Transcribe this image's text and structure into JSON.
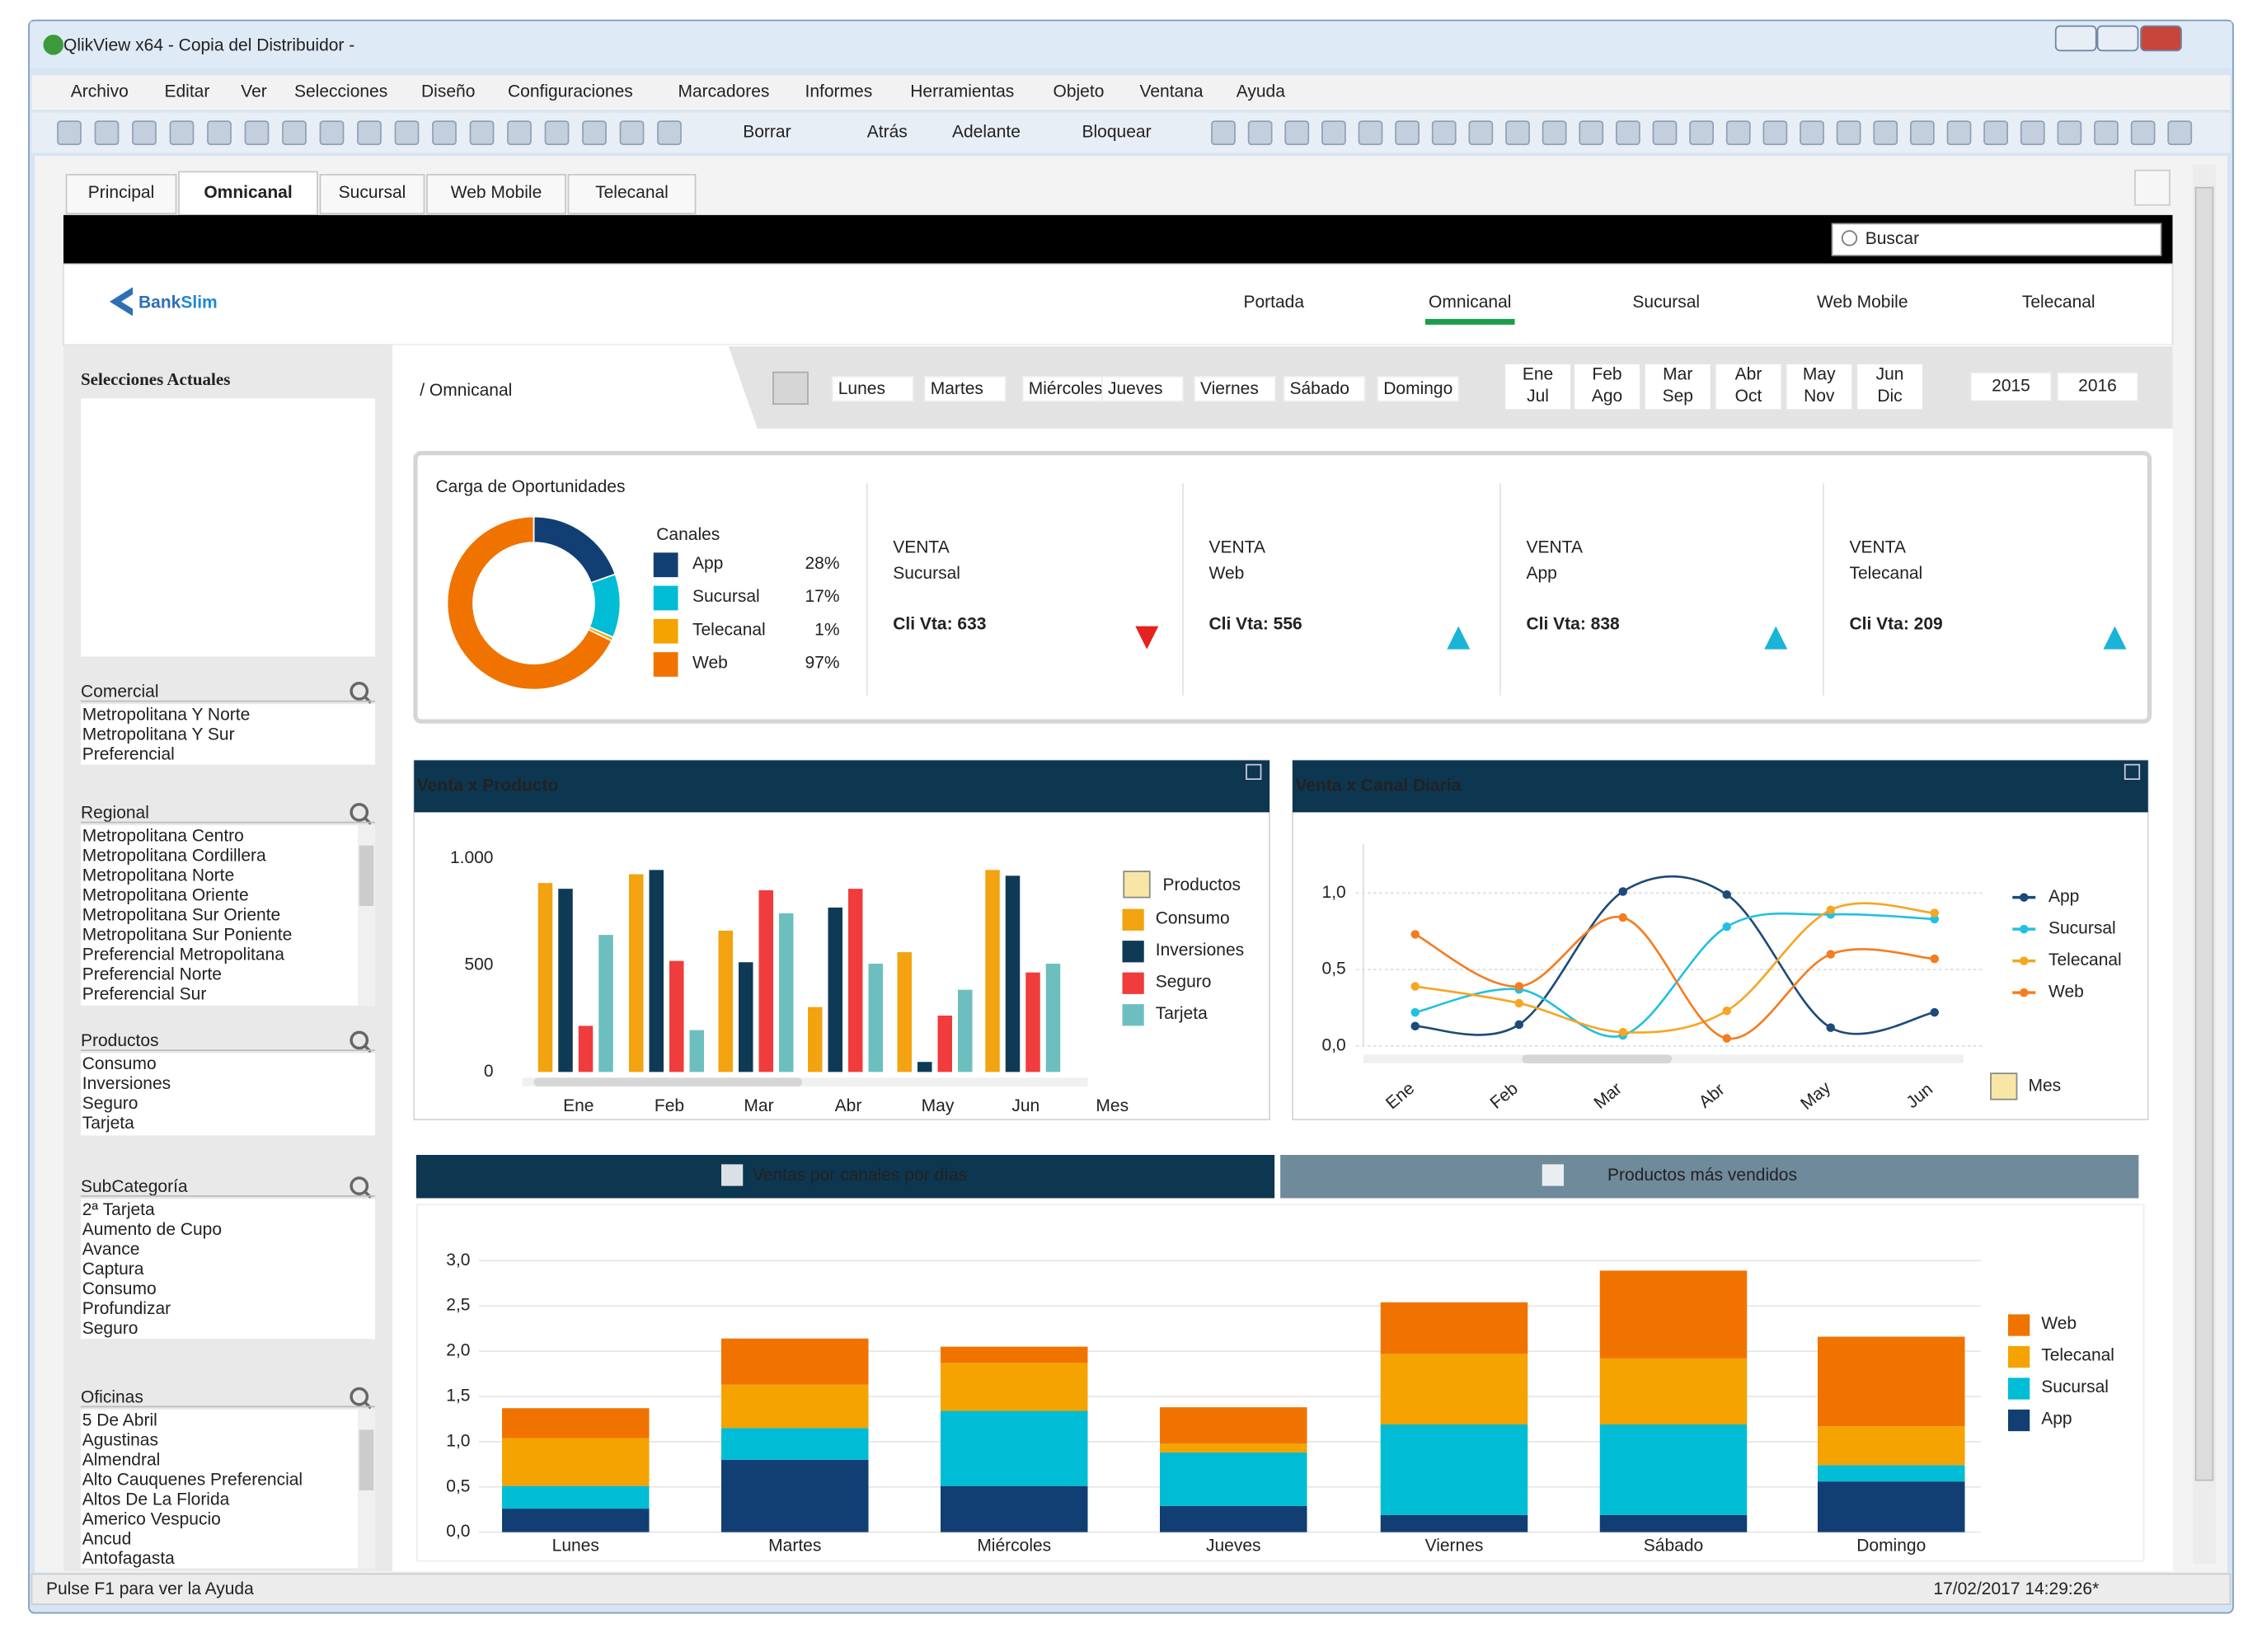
{
  "window": {
    "title": "QlikView x64 - Copia del Distribuidor -"
  },
  "menu": [
    "Archivo",
    "Editar",
    "Ver",
    "Selecciones",
    "Diseño",
    "Configuraciones",
    "Marcadores",
    "Informes",
    "Herramientas",
    "Objeto",
    "Ventana",
    "Ayuda"
  ],
  "toolbar": {
    "clear": "Borrar",
    "back": "Atrás",
    "forward": "Adelante",
    "lock": "Bloquear"
  },
  "tabs": {
    "items": [
      "Principal",
      "Omnicanal",
      "Sucursal",
      "Web Mobile",
      "Telecanal"
    ],
    "active": 1
  },
  "search": "Buscar",
  "brand": {
    "part1": "Bank",
    "part2": "Slim"
  },
  "nav": {
    "items": [
      "Portada",
      "Omnicanal",
      "Sucursal",
      "Web Mobile",
      "Telecanal"
    ],
    "active": 1
  },
  "breadcrumb": "/ Omnicanal",
  "filters": {
    "days": [
      "Lunes",
      "Martes",
      "Miércoles",
      "Jueves",
      "Viernes",
      "Sábado",
      "Domingo"
    ],
    "months": [
      [
        "Ene",
        "Jul"
      ],
      [
        "Feb",
        "Ago"
      ],
      [
        "Mar",
        "Sep"
      ],
      [
        "Abr",
        "Oct"
      ],
      [
        "May",
        "Nov"
      ],
      [
        "Jun",
        "Dic"
      ]
    ],
    "years": [
      "2015",
      "2016"
    ]
  },
  "sidebar": {
    "current_title": "Selecciones Actuales",
    "lists": [
      {
        "title": "Comercial",
        "items": [
          "Metropolitana Y Norte",
          "Metropolitana Y Sur",
          "Preferencial"
        ]
      },
      {
        "title": "Regional",
        "items": [
          "Metropolitana Centro",
          "Metropolitana Cordillera",
          "Metropolitana Norte",
          "Metropolitana Oriente",
          "Metropolitana Sur Oriente",
          "Metropolitana Sur Poniente",
          "Preferencial Metropolitana",
          "Preferencial Norte",
          "Preferencial Sur"
        ]
      },
      {
        "title": "Productos",
        "items": [
          "Consumo",
          "Inversiones",
          "Seguro",
          "Tarjeta"
        ]
      },
      {
        "title": "SubCategoría",
        "items": [
          "2ª Tarjeta",
          "Aumento de Cupo",
          "Avance",
          "Captura",
          "Consumo",
          "Profundizar",
          "Seguro"
        ]
      },
      {
        "title": "Oficinas",
        "items": [
          "5 De Abril",
          "Agustinas",
          "Almendral",
          "Alto Cauquenes Preferencial",
          "Altos De La Florida",
          "Americo Vespucio",
          "Ancud",
          "Antofagasta"
        ]
      }
    ]
  },
  "kpi_panel": {
    "title": "Carga de Oportunidades",
    "trend_colors": {
      "up": "#19b4d8",
      "down": "#e3231f"
    },
    "kpis": [
      {
        "caption": "VENTA",
        "name": "Sucursal",
        "label": "Cli Vta: 633",
        "trend": "down"
      },
      {
        "caption": "VENTA",
        "name": "Web",
        "label": "Cli Vta: 556",
        "trend": "up"
      },
      {
        "caption": "VENTA",
        "name": "App",
        "label": "Cli Vta: 838",
        "trend": "up"
      },
      {
        "caption": "VENTA",
        "name": "Telecanal",
        "label": "Cli Vta: 209",
        "trend": "up"
      }
    ]
  },
  "chart_data": [
    {
      "type": "pie",
      "donut": true,
      "legend_title": "Canales",
      "categories": [
        "App",
        "Sucursal",
        "Telecanal",
        "Web"
      ],
      "values": [
        28,
        17,
        1,
        97
      ],
      "value_labels": [
        "28%",
        "17%",
        "1%",
        "97%"
      ],
      "colors": [
        "#123f73",
        "#00bcd4",
        "#f4a300",
        "#f07300"
      ]
    },
    {
      "type": "bar",
      "title": "Venta x Producto",
      "legend_title": "Productos",
      "x_label": "Mes",
      "categories": [
        "Ene",
        "Feb",
        "Mar",
        "Abr",
        "May",
        "Jun"
      ],
      "series": [
        {
          "name": "Consumo",
          "color": "#f2a30f",
          "values": [
            885,
            926,
            662,
            304,
            561,
            946
          ]
        },
        {
          "name": "Inversiones",
          "color": "#0f3a56",
          "values": [
            858,
            946,
            514,
            770,
            47,
            919
          ]
        },
        {
          "name": "Seguro",
          "color": "#f03c3c",
          "values": [
            216,
            520,
            851,
            858,
            264,
            466
          ]
        },
        {
          "name": "Tarjeta",
          "color": "#6dbfbf",
          "values": [
            642,
            196,
            743,
            507,
            385,
            507
          ]
        }
      ],
      "ylim": [
        0,
        1030
      ],
      "yticks": [
        0,
        500,
        {
          "value": 1000,
          "label": "1.000"
        }
      ],
      "grid": false
    },
    {
      "type": "line",
      "title": "Venta x Canal Diaria",
      "x_label": "Mes",
      "categories": [
        "Ene",
        "Feb",
        "Mar",
        "Abr",
        "May",
        "Jun"
      ],
      "series": [
        {
          "name": "App",
          "color": "#1d4a7a",
          "values": [
            0.13,
            0.14,
            1.01,
            0.99,
            0.12,
            0.22
          ]
        },
        {
          "name": "Sucursal",
          "color": "#22c0e0",
          "values": [
            0.22,
            0.37,
            0.07,
            0.78,
            0.86,
            0.83
          ]
        },
        {
          "name": "Telecanal",
          "color": "#f5a623",
          "values": [
            0.39,
            0.28,
            0.09,
            0.23,
            0.89,
            0.87
          ]
        },
        {
          "name": "Web",
          "color": "#f57c1f",
          "values": [
            0.73,
            0.39,
            0.84,
            0.05,
            0.6,
            0.57
          ]
        }
      ],
      "ylim": [
        0,
        1.25
      ],
      "yticks": [
        {
          "value": 0,
          "label": "0,0"
        },
        {
          "value": 0.5,
          "label": "0,5"
        },
        {
          "value": 1,
          "label": "1,0"
        }
      ],
      "grid": true
    },
    {
      "type": "bar",
      "stacked": true,
      "categories": [
        "Lunes",
        "Martes",
        "Miércoles",
        "Jueves",
        "Viernes",
        "Sábado",
        "Domingo"
      ],
      "series": [
        {
          "name": "App",
          "color": "#123f73",
          "values": [
            0.26,
            0.8,
            0.51,
            0.29,
            0.19,
            0.19,
            0.56
          ]
        },
        {
          "name": "Sucursal",
          "color": "#00bcd4",
          "values": [
            0.25,
            0.35,
            0.83,
            0.59,
            1.0,
            1.0,
            0.18
          ]
        },
        {
          "name": "Telecanal",
          "color": "#f4a300",
          "values": [
            0.53,
            0.48,
            0.53,
            0.1,
            0.78,
            0.73,
            0.43
          ]
        },
        {
          "name": "Web",
          "color": "#f07300",
          "values": [
            0.33,
            0.51,
            0.18,
            0.4,
            0.57,
            0.97,
            0.99
          ]
        }
      ],
      "ylim": [
        0,
        3.3
      ],
      "yticks": [
        {
          "value": 0,
          "label": "0,0"
        },
        {
          "value": 0.5,
          "label": "0,5"
        },
        {
          "value": 1,
          "label": "1,0"
        },
        {
          "value": 1.5,
          "label": "1,5"
        },
        {
          "value": 2,
          "label": "2,0"
        },
        {
          "value": 2.5,
          "label": "2,5"
        },
        {
          "value": 3,
          "label": "3,0"
        }
      ],
      "grid": true
    }
  ],
  "bottom_tabs": {
    "items": [
      "Ventas por canales por días",
      "Productos más vendidos"
    ],
    "active": 0
  },
  "status": {
    "help": "Pulse F1 para ver la Ayuda",
    "time": "17/02/2017 14:29:26*"
  }
}
